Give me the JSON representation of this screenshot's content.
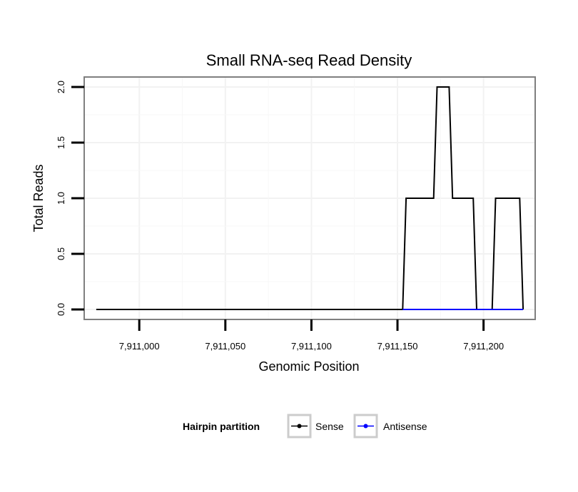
{
  "chart_data": {
    "type": "line",
    "title": "Small RNA-seq Read Density",
    "xlabel": "Genomic Position",
    "ylabel": "Total Reads",
    "xlim": [
      7910968,
      7911230
    ],
    "ylim": [
      -0.09,
      2.09
    ],
    "x_ticks": [
      7911000,
      7911050,
      7911100,
      7911150,
      7911200
    ],
    "x_tick_labels": [
      "7,911,000",
      "7,911,050",
      "7,911,100",
      "7,911,150",
      "7,911,200"
    ],
    "y_ticks": [
      0,
      0.5,
      1,
      1.5,
      2
    ],
    "y_tick_labels": [
      "0.0",
      "0.5",
      "1.0",
      "1.5",
      "2.0"
    ],
    "grid": true,
    "legend": {
      "title": "Hairpin partition",
      "position": "bottom",
      "entries": [
        {
          "label": "Sense",
          "color": "#000000"
        },
        {
          "label": "Antisense",
          "color": "#0000ff"
        }
      ]
    },
    "series": [
      {
        "name": "Sense",
        "color": "#000000",
        "x": [
          7910975,
          7911153,
          7911155,
          7911171,
          7911173,
          7911180,
          7911182,
          7911194,
          7911196,
          7911205,
          7911207,
          7911221,
          7911223
        ],
        "y": [
          0,
          0,
          1,
          1,
          2,
          2,
          1,
          1,
          0,
          0,
          1,
          1,
          0
        ]
      },
      {
        "name": "Antisense",
        "color": "#0000ff",
        "x": [
          7911153,
          7911223
        ],
        "y": [
          0,
          0
        ]
      }
    ]
  }
}
